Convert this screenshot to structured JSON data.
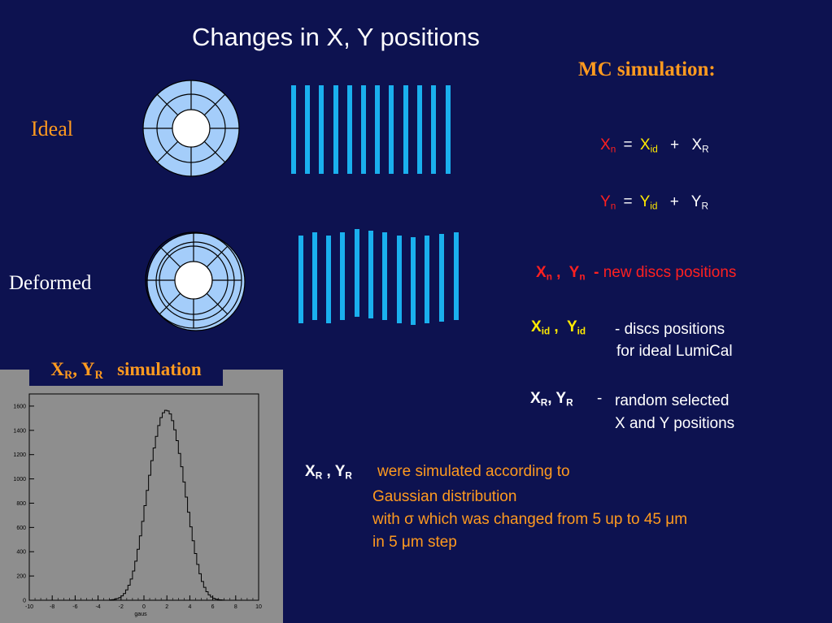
{
  "title": "Changes in X, Y  positions",
  "mc_label": "MC simulation:",
  "ideal_label": "Ideal",
  "deformed_label": "Deformed",
  "equations": {
    "xn": {
      "base": "X",
      "sub": "n"
    },
    "xid": {
      "base": "X",
      "sub": "id"
    },
    "xr": {
      "base": "X",
      "sub": "R"
    },
    "yn": {
      "base": "Y",
      "sub": "n"
    },
    "yid": {
      "base": "Y",
      "sub": "id"
    },
    "yr": {
      "base": "Y",
      "sub": "R"
    },
    "eq_sign": "=",
    "plus_sign": "+"
  },
  "definitions": [
    {
      "label_parts": [
        "X",
        "n",
        " ,  ",
        "Y",
        "n",
        "  -"
      ],
      "text": " new discs positions"
    },
    {
      "label_parts": [
        "X",
        "id",
        " ,  ",
        "Y",
        "id",
        ""
      ],
      "text": "- discs positions",
      "text2": "for ideal LumiCal"
    },
    {
      "label_parts": [
        "X",
        "R",
        ", ",
        "Y",
        "R",
        ""
      ],
      "dash": "-",
      "text": "random  selected",
      "text2": "X and Y  positions"
    }
  ],
  "simulation_note": {
    "label": [
      "X",
      "R",
      " , ",
      "Y",
      "R"
    ],
    "line1": "were simulated according to",
    "line2": "Gaussian distribution",
    "line3": "with σ which was changed from 5 up to 45 μm",
    "line4": "in 5 μm  step"
  },
  "sim_box_label": [
    "X",
    "R",
    ", Y",
    "R",
    "   simulation"
  ],
  "colors": {
    "background": "#0d1250",
    "orange": "#ff9a1f",
    "red": "#ff2020",
    "yellow": "#ffea00",
    "disc_fill": "#a4cdfa",
    "strip_color": "#1ab0ee"
  },
  "chart_data": {
    "type": "histogram",
    "title": "",
    "xlabel": "gaus",
    "ylabel": "",
    "xlim": [
      -10,
      10
    ],
    "ylim": [
      0,
      1700
    ],
    "x_ticks": [
      "-10",
      "-8",
      "-6",
      "-4",
      "-2",
      "0",
      "2",
      "4",
      "6",
      "8",
      "10"
    ],
    "y_ticks": [
      "0",
      "200",
      "400",
      "600",
      "800",
      "1000",
      "1200",
      "1400",
      "1600"
    ],
    "bin_width": 0.2,
    "bins_x_start": -3.0,
    "values": [
      3,
      5,
      8,
      14,
      22,
      36,
      55,
      85,
      124,
      175,
      241,
      322,
      420,
      530,
      650,
      780,
      905,
      1030,
      1150,
      1255,
      1350,
      1440,
      1505,
      1545,
      1565,
      1560,
      1535,
      1480,
      1405,
      1315,
      1210,
      1100,
      975,
      850,
      725,
      605,
      490,
      385,
      295,
      218,
      155,
      106,
      70,
      44,
      27,
      16,
      9,
      5,
      3,
      2
    ]
  }
}
